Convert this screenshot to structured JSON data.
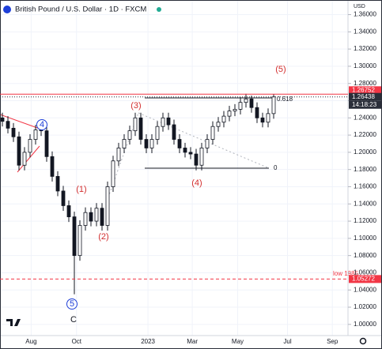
{
  "chart_data": {
    "type": "candlestick",
    "title": "British Pound / U.S. Dollar · 1D · FXCM",
    "currency": "USD",
    "color": "#131722",
    "x": [
      0,
      1,
      2,
      3,
      4,
      5,
      6,
      7,
      8,
      9,
      10,
      11,
      12,
      13,
      14,
      15,
      16,
      17,
      18,
      19,
      20,
      21,
      22,
      23,
      24,
      25,
      26,
      27,
      28,
      29,
      30,
      31,
      32,
      33,
      34,
      35,
      36,
      37,
      38,
      39,
      40,
      41,
      42,
      43,
      44,
      45,
      46,
      47,
      48,
      49
    ],
    "open": [
      1.24,
      1.236,
      1.228,
      1.218,
      1.185,
      1.2,
      1.215,
      1.226,
      1.225,
      1.195,
      1.172,
      1.155,
      1.138,
      1.125,
      1.08,
      1.115,
      1.13,
      1.12,
      1.135,
      1.115,
      1.16,
      1.19,
      1.205,
      1.215,
      1.225,
      1.24,
      1.215,
      1.205,
      1.215,
      1.23,
      1.24,
      1.232,
      1.215,
      1.205,
      1.2,
      1.198,
      1.185,
      1.205,
      1.215,
      1.23,
      1.235,
      1.242,
      1.248,
      1.25,
      1.258,
      1.262,
      1.252,
      1.24,
      1.235,
      1.245
    ],
    "high": [
      1.246,
      1.242,
      1.234,
      1.224,
      1.206,
      1.221,
      1.232,
      1.232,
      1.231,
      1.201,
      1.178,
      1.161,
      1.144,
      1.131,
      1.121,
      1.136,
      1.136,
      1.141,
      1.141,
      1.166,
      1.196,
      1.211,
      1.221,
      1.231,
      1.246,
      1.246,
      1.221,
      1.221,
      1.236,
      1.246,
      1.246,
      1.238,
      1.221,
      1.211,
      1.206,
      1.204,
      1.211,
      1.221,
      1.236,
      1.241,
      1.248,
      1.254,
      1.256,
      1.264,
      1.268,
      1.266,
      1.258,
      1.246,
      1.251,
      1.2675
    ],
    "low": [
      1.23,
      1.222,
      1.212,
      1.179,
      1.179,
      1.194,
      1.209,
      1.219,
      1.189,
      1.166,
      1.149,
      1.132,
      1.119,
      1.035,
      1.074,
      1.109,
      1.114,
      1.114,
      1.109,
      1.109,
      1.154,
      1.184,
      1.199,
      1.209,
      1.219,
      1.209,
      1.199,
      1.199,
      1.209,
      1.224,
      1.226,
      1.209,
      1.199,
      1.194,
      1.192,
      1.179,
      1.179,
      1.199,
      1.209,
      1.224,
      1.229,
      1.236,
      1.242,
      1.244,
      1.252,
      1.246,
      1.234,
      1.229,
      1.229,
      1.239
    ],
    "close": [
      1.236,
      1.228,
      1.218,
      1.185,
      1.2,
      1.215,
      1.226,
      1.225,
      1.195,
      1.172,
      1.155,
      1.138,
      1.125,
      1.08,
      1.115,
      1.13,
      1.12,
      1.135,
      1.115,
      1.16,
      1.19,
      1.205,
      1.215,
      1.225,
      1.24,
      1.215,
      1.205,
      1.215,
      1.23,
      1.24,
      1.232,
      1.215,
      1.205,
      1.2,
      1.198,
      1.185,
      1.205,
      1.215,
      1.23,
      1.235,
      1.242,
      1.248,
      1.25,
      1.258,
      1.262,
      1.252,
      1.24,
      1.235,
      1.245,
      1.2644
    ],
    "xlim": [
      -0.43,
      62.43
    ],
    "xticks": [
      {
        "value": 5.2,
        "label": "Aug"
      },
      {
        "value": 13.4,
        "label": "Oct"
      },
      {
        "value": 26.3,
        "label": "2023"
      },
      {
        "value": 34.3,
        "label": "Mar"
      },
      {
        "value": 42.5,
        "label": "May"
      },
      {
        "value": 51.5,
        "label": "Jul"
      },
      {
        "value": 59.6,
        "label": "Sep"
      }
    ],
    "ylim": [
      0.987,
      1.377
    ],
    "yticks": [
      {
        "value": 1.0,
        "label": "1.00000"
      },
      {
        "value": 1.02,
        "label": "1.02000"
      },
      {
        "value": 1.04,
        "label": "1.04000"
      },
      {
        "value": 1.06,
        "label": "1.06000"
      },
      {
        "value": 1.08,
        "label": "1.08000"
      },
      {
        "value": 1.1,
        "label": "1.10000"
      },
      {
        "value": 1.12,
        "label": "1.12000"
      },
      {
        "value": 1.14,
        "label": "1.14000"
      },
      {
        "value": 1.16,
        "label": "1.16000"
      },
      {
        "value": 1.18,
        "label": "1.18000"
      },
      {
        "value": 1.2,
        "label": "1.20000"
      },
      {
        "value": 1.22,
        "label": "1.22000"
      },
      {
        "value": 1.24,
        "label": "1.24000"
      },
      {
        "value": 1.26,
        "label": "1.26000"
      },
      {
        "value": 1.28,
        "label": "1.28000"
      },
      {
        "value": 1.3,
        "label": "1.30000"
      },
      {
        "value": 1.32,
        "label": "1.32000"
      },
      {
        "value": 1.34,
        "label": "1.34000"
      },
      {
        "value": 1.36,
        "label": "1.36000"
      }
    ],
    "price_labels": [
      {
        "value": 1.26752,
        "color": "#f23645",
        "line": "solid"
      },
      {
        "value": 1.26438,
        "color": "#2a2e39",
        "line": "dotted"
      },
      {
        "value": 1.05272,
        "color": "#f23645",
        "line": "dashed"
      }
    ],
    "countdown": "14:18:23",
    "annotations": [
      {
        "text": "(1)",
        "color": "#d32f2f"
      },
      {
        "text": "(2)",
        "color": "#d32f2f"
      },
      {
        "text": "(3)",
        "color": "#d32f2f"
      },
      {
        "text": "(4)",
        "color": "#d32f2f"
      },
      {
        "text": "(5)",
        "color": "#d32f2f"
      },
      {
        "text": "4",
        "color": "#1e3fd8"
      },
      {
        "text": "5",
        "color": "#1e3fd8"
      },
      {
        "text": "C",
        "color": "#131722"
      },
      {
        "text": "0.618",
        "color": "#131722"
      },
      {
        "text": "0",
        "color": "#131722"
      },
      {
        "text": "low 1985",
        "color": "#f23645"
      }
    ]
  }
}
